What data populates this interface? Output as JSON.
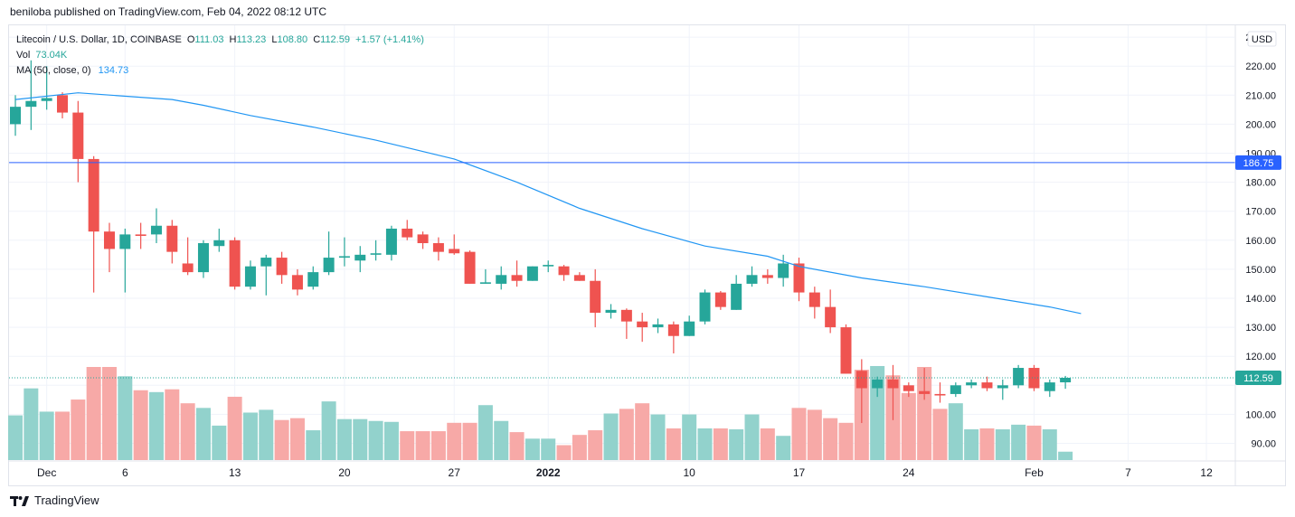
{
  "header": {
    "published": "beniloba published on TradingView.com, Feb 04, 2022 08:12 UTC"
  },
  "legend": {
    "symbol": "Litecoin / U.S. Dollar, 1D, COINBASE",
    "o_label": "O",
    "o_value": "111.03",
    "h_label": "H",
    "h_value": "113.23",
    "l_label": "L",
    "l_value": "108.80",
    "c_label": "C",
    "c_value": "112.59",
    "change": "+1.57 (+1.41%)",
    "vol_label": "Vol",
    "vol_value": "73.04K",
    "ma_label": "MA (50, close, 0)",
    "ma_value": "134.73"
  },
  "axis": {
    "currency": "USD"
  },
  "footer": {
    "brand": "TradingView"
  },
  "colors": {
    "up": "#26a69a",
    "down": "#ef5350",
    "up_volume": "#92d2cc",
    "down_volume": "#f7a9a7",
    "ma": "#2196f3",
    "hline": "#2962ff"
  },
  "chart_data": {
    "type": "candlestick",
    "title": "Litecoin / U.S. Dollar, 1D, COINBASE",
    "x_tick_labels": [
      "Dec",
      "6",
      "13",
      "20",
      "27",
      "2022",
      "10",
      "17",
      "24",
      "Feb",
      "7",
      "12"
    ],
    "x_tick_days": [
      0,
      5,
      12,
      19,
      26,
      32,
      41,
      48,
      55,
      63,
      69,
      74
    ],
    "y_tick_labels": [
      "90.00",
      "100.00",
      "110.00",
      "120.00",
      "130.00",
      "140.00",
      "150.00",
      "160.00",
      "170.00",
      "180.00",
      "190.00",
      "200.00",
      "210.00",
      "220.00",
      "230.00"
    ],
    "y_range": [
      84,
      237
    ],
    "horizontal_line": {
      "value": 186.75,
      "label": "186.75"
    },
    "last_price": {
      "value": 112.59,
      "label": "112.59"
    },
    "candles": [
      {
        "o": 200,
        "h": 210,
        "l": 196,
        "c": 206
      },
      {
        "o": 206,
        "h": 222,
        "l": 198,
        "c": 208
      },
      {
        "o": 208,
        "h": 220,
        "l": 205,
        "c": 209
      },
      {
        "o": 210,
        "h": 211,
        "l": 202,
        "c": 204
      },
      {
        "o": 204,
        "h": 208,
        "l": 180,
        "c": 188
      },
      {
        "o": 188,
        "h": 189,
        "l": 142,
        "c": 163
      },
      {
        "o": 163,
        "h": 166,
        "l": 149,
        "c": 157
      },
      {
        "o": 157,
        "h": 164,
        "l": 142,
        "c": 162
      },
      {
        "o": 162,
        "h": 166,
        "l": 157,
        "c": 161.5
      },
      {
        "o": 162,
        "h": 171,
        "l": 159,
        "c": 165
      },
      {
        "o": 165,
        "h": 167,
        "l": 152,
        "c": 156
      },
      {
        "o": 152,
        "h": 161,
        "l": 148,
        "c": 149
      },
      {
        "o": 149,
        "h": 160,
        "l": 147,
        "c": 159
      },
      {
        "o": 158,
        "h": 164,
        "l": 156,
        "c": 160
      },
      {
        "o": 160,
        "h": 161,
        "l": 143,
        "c": 144
      },
      {
        "o": 144,
        "h": 153,
        "l": 143,
        "c": 151
      },
      {
        "o": 151,
        "h": 155,
        "l": 141,
        "c": 154
      },
      {
        "o": 154,
        "h": 156,
        "l": 145,
        "c": 148
      },
      {
        "o": 148,
        "h": 150,
        "l": 141,
        "c": 143
      },
      {
        "o": 144,
        "h": 151,
        "l": 143,
        "c": 149
      },
      {
        "o": 149,
        "h": 163,
        "l": 148,
        "c": 154
      },
      {
        "o": 154,
        "h": 161,
        "l": 151,
        "c": 154.5
      },
      {
        "o": 153,
        "h": 158,
        "l": 149,
        "c": 155
      },
      {
        "o": 155,
        "h": 160,
        "l": 153,
        "c": 155.5
      },
      {
        "o": 155,
        "h": 165,
        "l": 153,
        "c": 164
      },
      {
        "o": 164,
        "h": 167,
        "l": 160,
        "c": 161
      },
      {
        "o": 162,
        "h": 163,
        "l": 157,
        "c": 159
      },
      {
        "o": 159,
        "h": 161,
        "l": 153,
        "c": 156
      },
      {
        "o": 157,
        "h": 162,
        "l": 155,
        "c": 155.5
      },
      {
        "o": 156,
        "h": 156.5,
        "l": 145,
        "c": 145
      },
      {
        "o": 145,
        "h": 150,
        "l": 145,
        "c": 145.5
      },
      {
        "o": 145,
        "h": 151,
        "l": 143,
        "c": 148
      },
      {
        "o": 148,
        "h": 153,
        "l": 144,
        "c": 146
      },
      {
        "o": 146,
        "h": 151,
        "l": 146,
        "c": 151
      },
      {
        "o": 151,
        "h": 153,
        "l": 149,
        "c": 151.5
      },
      {
        "o": 151,
        "h": 151.5,
        "l": 146,
        "c": 148
      },
      {
        "o": 148,
        "h": 149,
        "l": 146,
        "c": 146
      },
      {
        "o": 146,
        "h": 150,
        "l": 130,
        "c": 135
      },
      {
        "o": 135,
        "h": 138,
        "l": 133,
        "c": 136
      },
      {
        "o": 136,
        "h": 136.5,
        "l": 126,
        "c": 132
      },
      {
        "o": 132,
        "h": 135,
        "l": 125,
        "c": 130
      },
      {
        "o": 130,
        "h": 133,
        "l": 128,
        "c": 131
      },
      {
        "o": 131,
        "h": 132,
        "l": 121,
        "c": 127
      },
      {
        "o": 127,
        "h": 134,
        "l": 127,
        "c": 132
      },
      {
        "o": 132,
        "h": 143,
        "l": 131,
        "c": 142
      },
      {
        "o": 142,
        "h": 142.5,
        "l": 136,
        "c": 137
      },
      {
        "o": 136,
        "h": 148,
        "l": 136,
        "c": 145
      },
      {
        "o": 145,
        "h": 151,
        "l": 144,
        "c": 148
      },
      {
        "o": 148,
        "h": 150,
        "l": 145,
        "c": 147
      },
      {
        "o": 147,
        "h": 155,
        "l": 144,
        "c": 152
      },
      {
        "o": 152,
        "h": 154,
        "l": 139,
        "c": 142
      },
      {
        "o": 142,
        "h": 144,
        "l": 133,
        "c": 137
      },
      {
        "o": 137,
        "h": 143,
        "l": 128,
        "c": 130
      },
      {
        "o": 130,
        "h": 131,
        "l": 114,
        "c": 114
      },
      {
        "o": 115,
        "h": 119,
        "l": 97,
        "c": 109
      },
      {
        "o": 109,
        "h": 113,
        "l": 106,
        "c": 112
      },
      {
        "o": 112,
        "h": 117,
        "l": 98,
        "c": 109
      },
      {
        "o": 110,
        "h": 111,
        "l": 106,
        "c": 108
      },
      {
        "o": 108,
        "h": 116,
        "l": 105,
        "c": 107
      },
      {
        "o": 107,
        "h": 111,
        "l": 104,
        "c": 106.5
      },
      {
        "o": 107,
        "h": 111,
        "l": 106,
        "c": 110
      },
      {
        "o": 110,
        "h": 112,
        "l": 109,
        "c": 111
      },
      {
        "o": 111,
        "h": 113,
        "l": 108,
        "c": 109
      },
      {
        "o": 109,
        "h": 112,
        "l": 105,
        "c": 110
      },
      {
        "o": 110,
        "h": 117,
        "l": 109,
        "c": 116
      },
      {
        "o": 116,
        "h": 117,
        "l": 108,
        "c": 109
      },
      {
        "o": 108,
        "h": 112,
        "l": 106,
        "c": 111
      },
      {
        "o": 111.03,
        "h": 113.23,
        "l": 108.8,
        "c": 112.59
      }
    ],
    "volume_rel": [
      0.48,
      0.77,
      0.52,
      0.52,
      0.65,
      1.0,
      1.0,
      0.9,
      0.75,
      0.73,
      0.76,
      0.61,
      0.56,
      0.37,
      0.68,
      0.51,
      0.54,
      0.43,
      0.45,
      0.32,
      0.63,
      0.44,
      0.44,
      0.42,
      0.41,
      0.31,
      0.31,
      0.31,
      0.4,
      0.4,
      0.59,
      0.42,
      0.3,
      0.23,
      0.23,
      0.16,
      0.27,
      0.32,
      0.5,
      0.55,
      0.61,
      0.49,
      0.34,
      0.49,
      0.34,
      0.34,
      0.33,
      0.49,
      0.34,
      0.26,
      0.56,
      0.54,
      0.45,
      0.4,
      0.97,
      1.01,
      0.91,
      0.72,
      1.0,
      0.55,
      0.61,
      0.33,
      0.34,
      0.33,
      0.38,
      0.37,
      0.33,
      0.09
    ],
    "ma50": [
      {
        "d": 0,
        "v": 208.5
      },
      {
        "d": 4,
        "v": 210.8
      },
      {
        "d": 10,
        "v": 208.5
      },
      {
        "d": 12,
        "v": 206.5
      },
      {
        "d": 15,
        "v": 203
      },
      {
        "d": 19,
        "v": 199
      },
      {
        "d": 23,
        "v": 194.5
      },
      {
        "d": 28,
        "v": 188
      },
      {
        "d": 32,
        "v": 180
      },
      {
        "d": 36,
        "v": 171
      },
      {
        "d": 40,
        "v": 164
      },
      {
        "d": 44,
        "v": 158
      },
      {
        "d": 48,
        "v": 154.5
      },
      {
        "d": 50,
        "v": 151
      },
      {
        "d": 54,
        "v": 147
      },
      {
        "d": 58,
        "v": 144
      },
      {
        "d": 62,
        "v": 140.5
      },
      {
        "d": 66,
        "v": 137
      },
      {
        "d": 68,
        "v": 134.73
      }
    ]
  }
}
